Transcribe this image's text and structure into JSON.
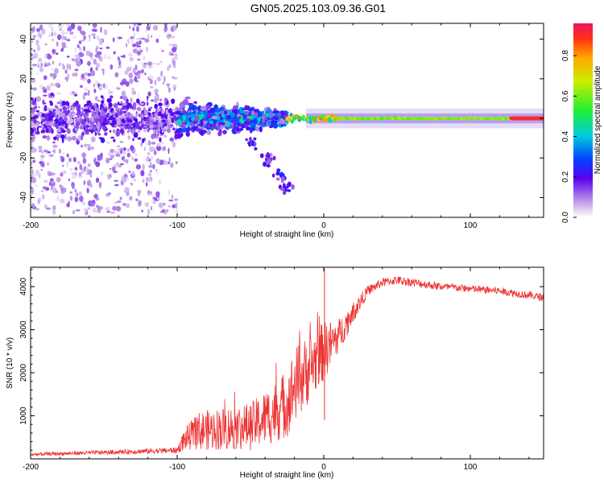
{
  "title": "GN05.2025.103.09.36.G01",
  "spectrogram": {
    "type": "heatmap",
    "xlabel": "Height of straight line (km)",
    "ylabel": "Frequency (Hz)",
    "xlim": [
      -200,
      150
    ],
    "ylim": [
      -50,
      48
    ],
    "xticks": [
      -200,
      -100,
      0,
      100
    ],
    "xtick_labels": [
      "-200",
      "-100",
      "0",
      "100"
    ],
    "yticks": [
      -40,
      -20,
      0,
      20,
      40
    ],
    "ytick_labels": [
      "-40",
      "-20",
      "0",
      "20",
      "40"
    ],
    "colorbar": {
      "label": "Normalized spectral amplitude",
      "ticks": [
        0.0,
        0.2,
        0.4,
        0.6,
        0.8
      ],
      "tick_labels": [
        "0.0",
        "0.2",
        "0.4",
        "0.6",
        "0.8"
      ],
      "range": [
        0,
        0.96
      ]
    },
    "regions": [
      {
        "x_from": -200,
        "x_to": -100,
        "description": "scattered noise",
        "freq_spread": 48,
        "amplitude": 0.1
      },
      {
        "x_from": -100,
        "x_to": -25,
        "description": "emerging signal near 0 Hz",
        "freq_spread": 8,
        "amplitude": 0.45
      },
      {
        "x_from": -25,
        "x_to": 150,
        "description": "steady tone at 0 Hz",
        "freq_spread": 2,
        "amplitude": 0.7
      }
    ],
    "doppler_branch": [
      {
        "x": -58,
        "y": -5
      },
      {
        "x": -48,
        "y": -12
      },
      {
        "x": -38,
        "y": -20
      },
      {
        "x": -30,
        "y": -28
      },
      {
        "x": -27,
        "y": -35
      }
    ]
  },
  "snr": {
    "type": "line",
    "xlabel": "Height of straight line (km)",
    "ylabel": "SNR (10 * v/v)",
    "xlim": [
      -200,
      150
    ],
    "ylim": [
      0,
      4450
    ],
    "xticks": [
      -200,
      -100,
      0,
      100
    ],
    "xtick_labels": [
      "-200",
      "-100",
      "0",
      "100"
    ],
    "yticks": [
      1000,
      2000,
      3000,
      4000
    ],
    "ytick_labels": [
      "1000",
      "2000",
      "3000",
      "4000"
    ],
    "color": "#ee3333",
    "envelope": {
      "x": [
        -200,
        -150,
        -100,
        -95,
        -85,
        -70,
        -50,
        -35,
        -25,
        -20,
        -10,
        0,
        10,
        20,
        30,
        40,
        50,
        60,
        80,
        100,
        120,
        150
      ],
      "mean": [
        100,
        150,
        200,
        450,
        650,
        700,
        750,
        1050,
        1300,
        1700,
        2100,
        2500,
        2850,
        3400,
        3900,
        4100,
        4150,
        4100,
        4000,
        3950,
        3900,
        3750
      ],
      "noise": [
        40,
        50,
        70,
        250,
        450,
        500,
        550,
        700,
        800,
        900,
        800,
        700,
        400,
        250,
        120,
        100,
        100,
        100,
        90,
        90,
        90,
        90
      ]
    }
  }
}
